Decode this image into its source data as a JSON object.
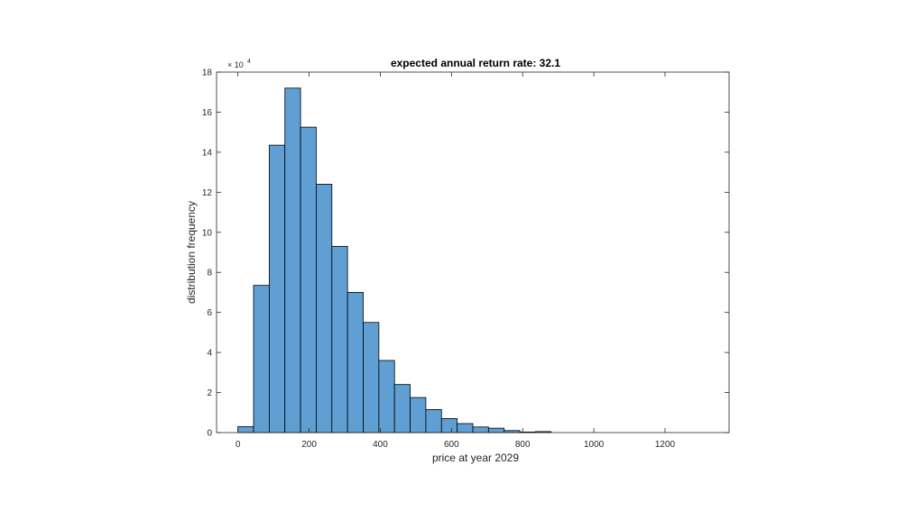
{
  "chart_data": {
    "type": "bar",
    "title": "expected annual return rate: 32.1",
    "xlabel": "price at year 2029",
    "ylabel": "distribution frequency",
    "y_exponent_label": "× 10",
    "y_exponent_power": "4",
    "xlim": [
      -60,
      1380
    ],
    "ylim": [
      0,
      18
    ],
    "x_ticks": [
      0,
      200,
      400,
      600,
      800,
      1000,
      1200
    ],
    "y_ticks": [
      0,
      2,
      4,
      6,
      8,
      10,
      12,
      14,
      16,
      18
    ],
    "grid": false,
    "legend": "none",
    "bin_width": 44,
    "bin_edges": [
      0,
      44,
      88,
      132,
      176,
      220,
      264,
      308,
      352,
      396,
      440,
      484,
      528,
      572,
      616,
      660,
      704,
      748,
      792,
      836,
      880
    ],
    "values": [
      0.3,
      7.35,
      14.35,
      17.2,
      15.25,
      12.4,
      9.3,
      7.0,
      5.5,
      3.6,
      2.4,
      1.75,
      1.15,
      0.7,
      0.45,
      0.28,
      0.22,
      0.1,
      0.03,
      0.05
    ],
    "colors": {
      "bar_fill": "#5f9fd3",
      "bar_edge": "#000000",
      "axis": "#262626"
    }
  }
}
